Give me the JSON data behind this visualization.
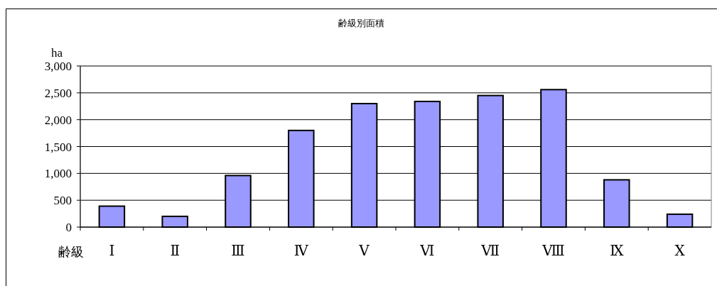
{
  "chart_data": {
    "type": "bar",
    "title": "齢級別面積",
    "xlabel": "齢級",
    "ylabel": "ha",
    "categories": [
      "Ⅰ",
      "Ⅱ",
      "Ⅲ",
      "Ⅳ",
      "Ⅴ",
      "Ⅵ",
      "Ⅶ",
      "Ⅷ",
      "Ⅸ",
      "Ⅹ"
    ],
    "values": [
      390,
      200,
      960,
      1800,
      2300,
      2340,
      2450,
      2560,
      880,
      240
    ],
    "color": "#9999ff",
    "ylim": [
      0,
      3000
    ],
    "yticks": [
      0,
      500,
      {
        "value": 1000,
        "label": "1,000"
      },
      {
        "value": 1500,
        "label": "1,500"
      },
      {
        "value": 2000,
        "label": "2,000"
      },
      {
        "value": 2500,
        "label": "2,500"
      },
      {
        "value": 3000,
        "label": "3,000"
      }
    ],
    "grid": "y"
  }
}
